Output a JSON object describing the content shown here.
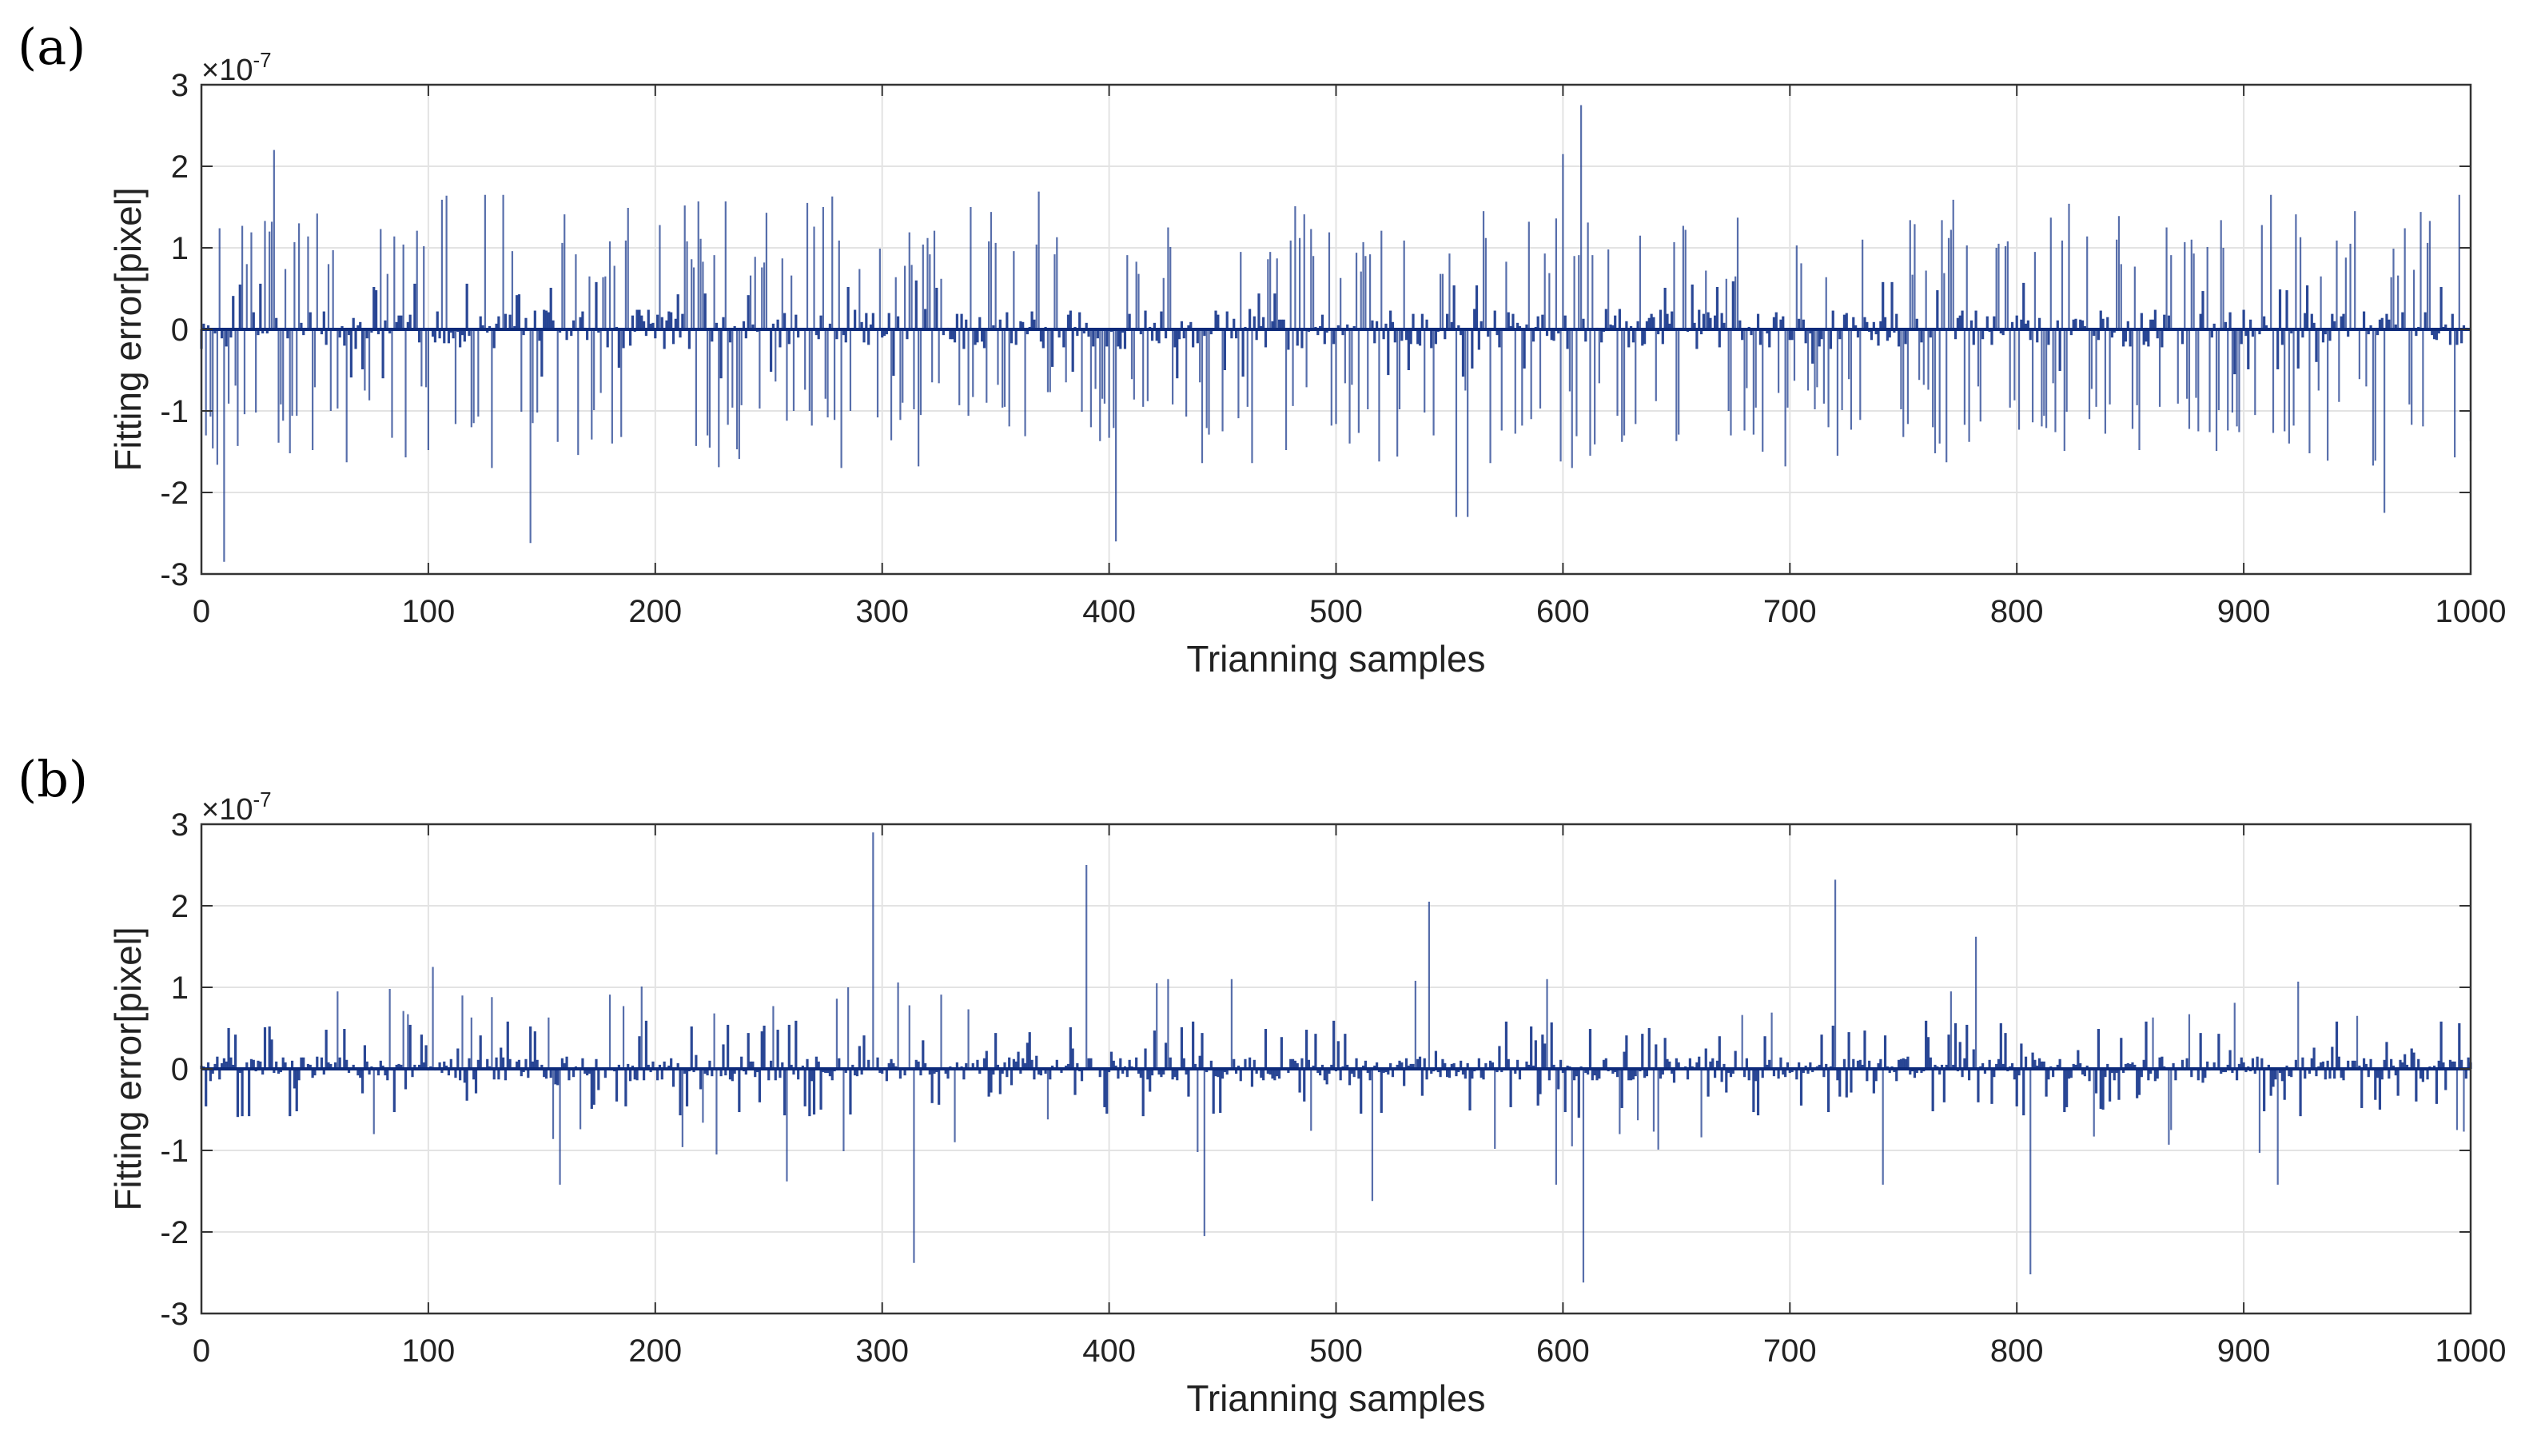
{
  "figure": {
    "panels": [
      "(a)",
      "(b)"
    ]
  },
  "chart_data": [
    {
      "type": "bar",
      "panel_label": "(a)",
      "title": "",
      "xlabel": "Trianning samples",
      "ylabel": "Fitting error[pixel]",
      "y_multiplier_base": "×10",
      "y_multiplier_exp": "-7",
      "xlim": [
        0,
        1000
      ],
      "ylim": [
        -3,
        3
      ],
      "xticks": [
        0,
        100,
        200,
        300,
        400,
        500,
        600,
        700,
        800,
        900,
        1000
      ],
      "yticks": [
        -3,
        -2,
        -1,
        0,
        1,
        2,
        3
      ],
      "grid": true,
      "color": "#1f3d8f",
      "x_step": 1,
      "notable_spikes": [
        [
          10,
          -2.85
        ],
        [
          32,
          2.2
        ],
        [
          145,
          -2.62
        ],
        [
          403,
          -2.6
        ],
        [
          553,
          -2.3
        ],
        [
          558,
          -2.3
        ],
        [
          600,
          2.15
        ],
        [
          608,
          2.75
        ],
        [
          962,
          -2.25
        ]
      ],
      "values": []
    },
    {
      "type": "bar",
      "panel_label": "(b)",
      "title": "",
      "xlabel": "Trianning samples",
      "ylabel": "Fitting error[pixel]",
      "y_multiplier_base": "×10",
      "y_multiplier_exp": "-7",
      "xlim": [
        0,
        1000
      ],
      "ylim": [
        -3,
        3
      ],
      "xticks": [
        0,
        100,
        200,
        300,
        400,
        500,
        600,
        700,
        800,
        900,
        1000
      ],
      "yticks": [
        -3,
        -2,
        -1,
        0,
        1,
        2,
        3
      ],
      "grid": true,
      "color": "#1f3d8f",
      "x_step": 1,
      "notable_spikes": [
        [
          102,
          1.25
        ],
        [
          158,
          -1.42
        ],
        [
          258,
          -1.38
        ],
        [
          296,
          2.9
        ],
        [
          314,
          -2.38
        ],
        [
          390,
          2.5
        ],
        [
          442,
          -2.05
        ],
        [
          516,
          -1.62
        ],
        [
          541,
          2.05
        ],
        [
          597,
          -1.42
        ],
        [
          609,
          -2.62
        ],
        [
          720,
          2.32
        ],
        [
          741,
          -1.42
        ],
        [
          782,
          1.62
        ],
        [
          806,
          -2.52
        ],
        [
          915,
          -1.42
        ]
      ],
      "values": []
    }
  ]
}
